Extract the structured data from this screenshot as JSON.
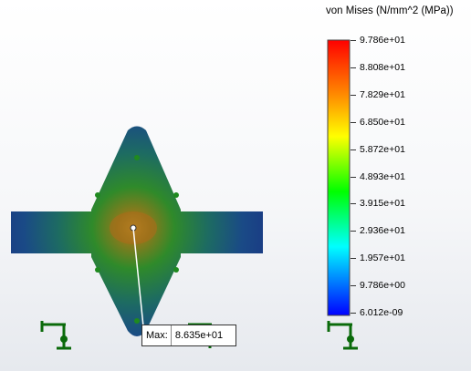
{
  "legend": {
    "title": "von Mises (N/mm^2 (MPa))",
    "ticks": [
      "9.786e+01",
      "8.808e+01",
      "7.829e+01",
      "6.850e+01",
      "5.872e+01",
      "4.893e+01",
      "3.915e+01",
      "2.936e+01",
      "1.957e+01",
      "9.786e+00",
      "6.012e-09"
    ],
    "colors": [
      "#ff0000",
      "#ff8c00",
      "#ffff00",
      "#00ff00",
      "#00ffff",
      "#0000ff"
    ]
  },
  "probe": {
    "label": "Max:",
    "value": "8.635e+01"
  },
  "model": {
    "body_color": "#1d3e86",
    "hot_color": "#c8a020"
  }
}
